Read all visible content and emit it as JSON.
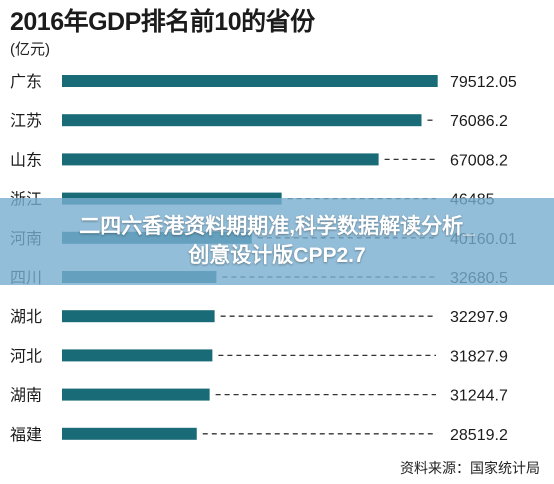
{
  "chart_data": {
    "type": "bar",
    "orientation": "horizontal",
    "title": "2016年GDP排名前10的省份",
    "unit": "(亿元)",
    "categories": [
      "广东",
      "江苏",
      "山东",
      "浙江",
      "河南",
      "四川",
      "湖北",
      "河北",
      "湖南",
      "福建"
    ],
    "values": [
      79512.05,
      76086.2,
      67008.2,
      46485,
      40160.01,
      32680.5,
      32297.9,
      31827.9,
      31244.7,
      28519.2
    ],
    "value_labels": [
      "79512.05",
      "76086.2",
      "67008.2",
      "46485",
      "40160.01",
      "32680.5",
      "32297.9",
      "31827.9",
      "31244.7",
      "28519.2"
    ],
    "xlim": [
      0,
      80000
    ],
    "grid": false,
    "bar_color": "#1a6b78",
    "leader_color": "#333333"
  },
  "source": "资料来源：国家统计局",
  "overlay": {
    "line1": "二四六香港资料期期准,科学数据解读分析_",
    "line2": "创意设计版CPP2.7",
    "color": "#78aed0"
  }
}
